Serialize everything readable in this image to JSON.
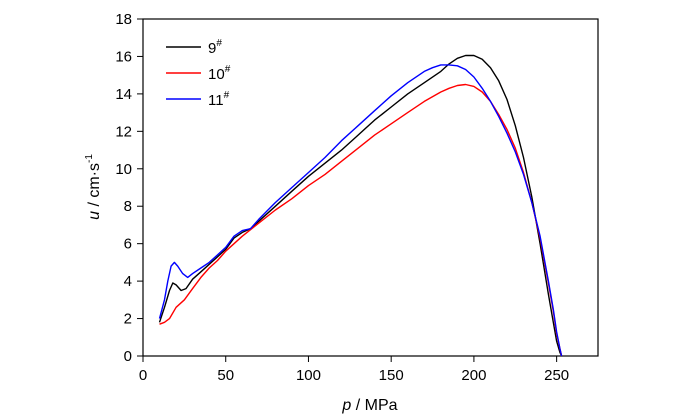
{
  "chart_data": {
    "type": "line",
    "xlabel": {
      "var": "p",
      "unit": " / MPa"
    },
    "ylabel": {
      "var": "u",
      "unit": " / cm·s",
      "sup": "-1"
    },
    "xlim": [
      0,
      275
    ],
    "ylim": [
      0,
      18
    ],
    "xticks": [
      0,
      50,
      100,
      150,
      200,
      250
    ],
    "yticks": [
      0,
      2,
      4,
      6,
      8,
      10,
      12,
      14,
      16,
      18
    ],
    "grid": false,
    "legend_position": "top-left",
    "series": [
      {
        "name": "9",
        "name_sup": "#",
        "color": "#000000",
        "x": [
          10,
          13,
          16,
          18,
          20,
          23,
          26,
          30,
          35,
          40,
          45,
          50,
          55,
          60,
          65,
          70,
          80,
          90,
          100,
          110,
          120,
          130,
          140,
          150,
          160,
          170,
          180,
          185,
          190,
          195,
          200,
          205,
          210,
          215,
          220,
          225,
          230,
          235,
          240,
          245,
          248,
          250,
          252,
          253
        ],
        "y": [
          1.8,
          2.6,
          3.5,
          3.9,
          3.8,
          3.5,
          3.6,
          4.1,
          4.5,
          4.9,
          5.3,
          5.7,
          6.3,
          6.6,
          6.8,
          7.2,
          8.0,
          8.8,
          9.6,
          10.3,
          11.0,
          11.8,
          12.6,
          13.3,
          14.0,
          14.6,
          15.2,
          15.6,
          15.9,
          16.05,
          16.05,
          15.85,
          15.4,
          14.7,
          13.7,
          12.3,
          10.6,
          8.5,
          6.0,
          3.3,
          1.8,
          0.8,
          0.2,
          0
        ]
      },
      {
        "name": "10",
        "name_sup": "#",
        "color": "#ff0000",
        "x": [
          10,
          13,
          16,
          20,
          25,
          30,
          35,
          40,
          45,
          50,
          55,
          60,
          70,
          80,
          90,
          100,
          110,
          120,
          130,
          140,
          150,
          160,
          170,
          180,
          185,
          190,
          195,
          200,
          205,
          210,
          215,
          220,
          225,
          230,
          235,
          240,
          245,
          248,
          250,
          252,
          253
        ],
        "y": [
          1.7,
          1.8,
          2.0,
          2.6,
          3.0,
          3.6,
          4.2,
          4.7,
          5.1,
          5.6,
          6.0,
          6.4,
          7.1,
          7.8,
          8.4,
          9.1,
          9.7,
          10.4,
          11.1,
          11.8,
          12.4,
          13.0,
          13.6,
          14.1,
          14.3,
          14.45,
          14.5,
          14.4,
          14.1,
          13.6,
          12.9,
          12.1,
          11.1,
          9.8,
          8.2,
          6.3,
          3.9,
          2.4,
          1.2,
          0.4,
          0
        ]
      },
      {
        "name": "11",
        "name_sup": "#",
        "color": "#0000ff",
        "x": [
          10,
          13,
          15,
          17,
          19,
          21,
          24,
          27,
          30,
          35,
          40,
          45,
          50,
          55,
          60,
          65,
          70,
          80,
          90,
          100,
          110,
          120,
          130,
          140,
          150,
          160,
          170,
          175,
          180,
          185,
          190,
          195,
          200,
          205,
          210,
          215,
          220,
          225,
          230,
          235,
          240,
          245,
          248,
          250,
          252,
          253
        ],
        "y": [
          2.0,
          3.0,
          4.0,
          4.8,
          5.0,
          4.8,
          4.4,
          4.2,
          4.4,
          4.7,
          5.0,
          5.4,
          5.8,
          6.4,
          6.7,
          6.8,
          7.3,
          8.2,
          9.0,
          9.8,
          10.6,
          11.5,
          12.3,
          13.1,
          13.9,
          14.6,
          15.2,
          15.4,
          15.55,
          15.55,
          15.5,
          15.3,
          14.9,
          14.3,
          13.6,
          12.8,
          11.9,
          10.9,
          9.7,
          8.2,
          6.4,
          4.0,
          2.5,
          1.3,
          0.4,
          0
        ]
      }
    ]
  }
}
